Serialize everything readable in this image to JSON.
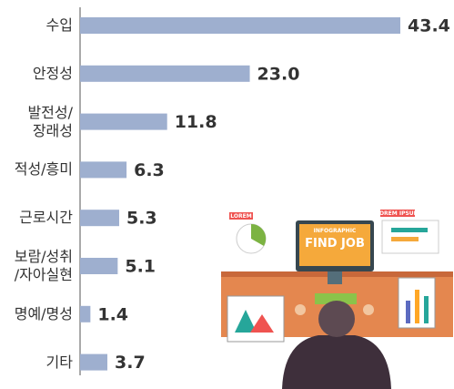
{
  "chart_data": {
    "type": "bar",
    "orientation": "horizontal",
    "categories": [
      "수입",
      "안정성",
      "발전성/\n장래성",
      "적성/흥미",
      "근로시간",
      "보람/성취\n/자아실현",
      "명예/명성",
      "기타"
    ],
    "values": [
      43.4,
      23.0,
      11.8,
      6.3,
      5.3,
      5.1,
      1.4,
      3.7
    ],
    "value_labels": [
      "43.4",
      "23.0",
      "11.8",
      "6.3",
      "5.3",
      "5.1",
      "1.4",
      "3.7"
    ],
    "color": "#9eafcf"
  },
  "illustration": {
    "screen_small": "INFOGRAPHIC",
    "screen_big": "FIND JOB",
    "tags": [
      "LOREM",
      "LOREM IPSUM"
    ]
  }
}
